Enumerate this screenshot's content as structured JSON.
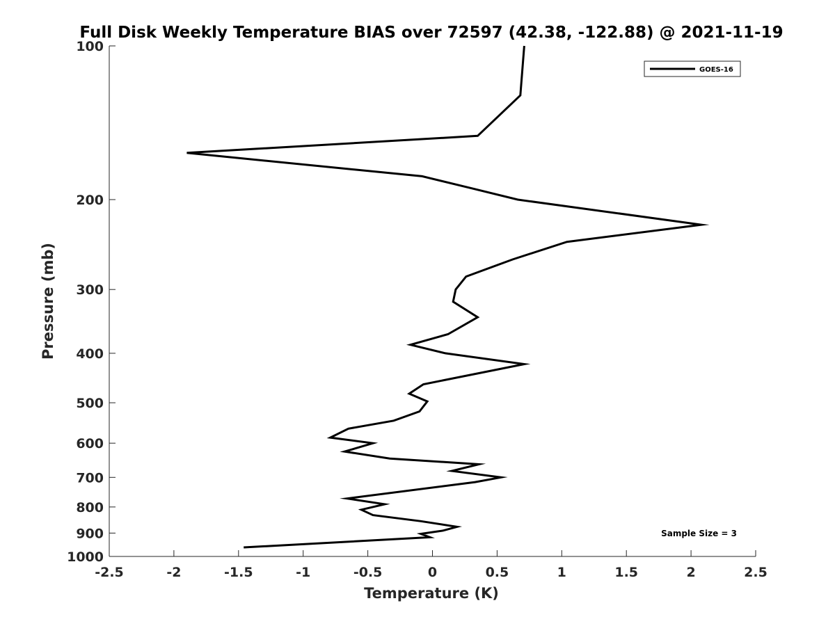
{
  "chart_data": {
    "type": "line",
    "title": "Full Disk Weekly Temperature BIAS over 72597 (42.38, -122.88) @ 2021-11-19",
    "xlabel": "Temperature (K)",
    "ylabel": "Pressure (mb)",
    "xlim": [
      -2.5,
      2.5
    ],
    "ylim": [
      1000,
      100
    ],
    "yscale": "log",
    "y_reversed": true,
    "grid": false,
    "legend_position": "top-right",
    "x_ticks": [
      -2.5,
      -2,
      -1.5,
      -1,
      -0.5,
      0,
      0.5,
      1,
      1.5,
      2,
      2.5
    ],
    "x_tick_labels": [
      "-2.5",
      "-2",
      "-1.5",
      "-1",
      "-0.5",
      "0",
      "0.5",
      "1",
      "1.5",
      "2",
      "2.5"
    ],
    "y_ticks": [
      100,
      200,
      300,
      400,
      500,
      600,
      700,
      800,
      900,
      1000
    ],
    "y_tick_labels": [
      "100",
      "200",
      "300",
      "400",
      "500",
      "600",
      "700",
      "800",
      "900",
      "1000"
    ],
    "series": [
      {
        "name": "GOES-16",
        "color": "#000000",
        "points": [
          {
            "x": 0.71,
            "y": 100
          },
          {
            "x": 0.68,
            "y": 125
          },
          {
            "x": 0.35,
            "y": 150
          },
          {
            "x": -1.9,
            "y": 162
          },
          {
            "x": -0.08,
            "y": 180
          },
          {
            "x": 0.3,
            "y": 190
          },
          {
            "x": 0.66,
            "y": 200
          },
          {
            "x": 2.08,
            "y": 224
          },
          {
            "x": 1.04,
            "y": 242
          },
          {
            "x": 0.62,
            "y": 262
          },
          {
            "x": 0.26,
            "y": 283
          },
          {
            "x": 0.18,
            "y": 300
          },
          {
            "x": 0.16,
            "y": 317
          },
          {
            "x": 0.35,
            "y": 340
          },
          {
            "x": 0.12,
            "y": 367
          },
          {
            "x": -0.17,
            "y": 385
          },
          {
            "x": 0.1,
            "y": 400
          },
          {
            "x": 0.71,
            "y": 420
          },
          {
            "x": -0.07,
            "y": 460
          },
          {
            "x": -0.18,
            "y": 480
          },
          {
            "x": -0.04,
            "y": 497
          },
          {
            "x": -0.1,
            "y": 520
          },
          {
            "x": -0.3,
            "y": 542
          },
          {
            "x": -0.65,
            "y": 562
          },
          {
            "x": -0.79,
            "y": 585
          },
          {
            "x": -0.46,
            "y": 600
          },
          {
            "x": -0.68,
            "y": 623
          },
          {
            "x": -0.33,
            "y": 643
          },
          {
            "x": 0.36,
            "y": 660
          },
          {
            "x": 0.15,
            "y": 680
          },
          {
            "x": 0.53,
            "y": 700
          },
          {
            "x": 0.33,
            "y": 715
          },
          {
            "x": -0.66,
            "y": 770
          },
          {
            "x": -0.37,
            "y": 790
          },
          {
            "x": -0.55,
            "y": 810
          },
          {
            "x": -0.46,
            "y": 830
          },
          {
            "x": -0.09,
            "y": 853
          },
          {
            "x": 0.19,
            "y": 875
          },
          {
            "x": 0.08,
            "y": 890
          },
          {
            "x": -0.09,
            "y": 903
          },
          {
            "x": -0.02,
            "y": 917
          },
          {
            "x": -1.46,
            "y": 960
          }
        ]
      }
    ],
    "annotations": [
      "Sample Size = 3"
    ]
  }
}
